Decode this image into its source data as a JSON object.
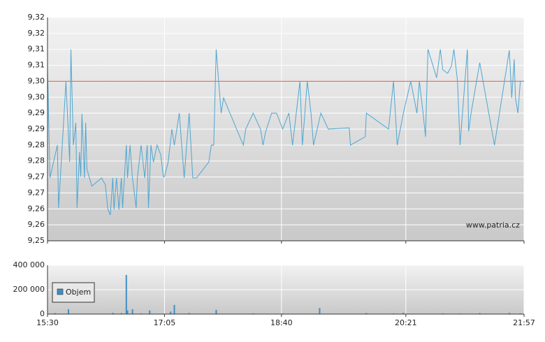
{
  "chart_data": [
    {
      "type": "line",
      "x": [
        930,
        932,
        938,
        939,
        945,
        948,
        949,
        951,
        953,
        954,
        956,
        957,
        958,
        960,
        961,
        962,
        966,
        974,
        977,
        979,
        981,
        983,
        984,
        986,
        988,
        990,
        991,
        994,
        995,
        997,
        999,
        1002,
        1003,
        1006,
        1009,
        1011,
        1012,
        1014,
        1016,
        1019,
        1022,
        1024,
        1025,
        1028,
        1031,
        1033,
        1037,
        1041,
        1045,
        1048,
        1051,
        1061,
        1063,
        1065,
        1067,
        1071,
        1073,
        1089,
        1091,
        1097,
        1103,
        1105,
        1107,
        1112,
        1116,
        1121,
        1126,
        1129,
        1135,
        1137,
        1141,
        1144,
        1146,
        1152,
        1158,
        1175,
        1176,
        1188,
        1189,
        1207,
        1211,
        1214,
        1219,
        1225,
        1230,
        1232,
        1235,
        1237,
        1239,
        1246,
        1249,
        1251,
        1255,
        1258,
        1260,
        1263,
        1265,
        1271,
        1272,
        1274,
        1281,
        1293,
        1305,
        1307,
        1309,
        1310,
        1312,
        1314,
        1317
      ],
      "values": [
        9.3047,
        9.2697,
        9.28,
        9.2603,
        9.3,
        9.2747,
        9.31,
        9.28,
        9.287,
        9.2603,
        9.2778,
        9.2701,
        9.2898,
        9.2697,
        9.287,
        9.2725,
        9.2671,
        9.2697,
        9.2675,
        9.2598,
        9.2581,
        9.2697,
        9.2598,
        9.2697,
        9.2598,
        9.2697,
        9.2603,
        9.28,
        9.2697,
        9.28,
        9.2697,
        9.2603,
        9.2697,
        9.28,
        9.2697,
        9.28,
        9.2603,
        9.28,
        9.2747,
        9.28,
        9.2769,
        9.2701,
        9.2701,
        9.2747,
        9.285,
        9.28,
        9.29,
        9.2697,
        9.29,
        9.2697,
        9.2697,
        9.2747,
        9.28,
        9.28,
        9.31,
        9.29,
        9.2948,
        9.28,
        9.285,
        9.29,
        9.285,
        9.28,
        9.2839,
        9.29,
        9.29,
        9.285,
        9.29,
        9.28,
        9.3,
        9.28,
        9.3,
        9.29,
        9.28,
        9.29,
        9.285,
        9.2854,
        9.28,
        9.2826,
        9.29,
        9.285,
        9.3,
        9.28,
        9.29,
        9.3,
        9.29,
        9.3,
        9.29,
        9.2826,
        9.31,
        9.3011,
        9.31,
        9.3036,
        9.3025,
        9.3047,
        9.31,
        9.3,
        9.28,
        9.31,
        9.2843,
        9.29,
        9.3058,
        9.28,
        9.3097,
        9.2948,
        9.3069,
        9.2948,
        9.29,
        9.3,
        9.3
      ],
      "color": "#4ea6d2",
      "reference_line": {
        "value": 9.3,
        "color": "#e8685c"
      },
      "watermark": "www.patria.cz",
      "xlim": [
        930,
        1317
      ],
      "ylim": [
        9.25,
        9.32
      ],
      "yticks": [
        {
          "value": 9.25,
          "label": "9,25"
        },
        {
          "value": 9.255,
          "label": "9,26"
        },
        {
          "value": 9.26,
          "label": "9,26"
        },
        {
          "value": 9.265,
          "label": "9,27"
        },
        {
          "value": 9.27,
          "label": "9,27"
        },
        {
          "value": 9.275,
          "label": "9,28"
        },
        {
          "value": 9.28,
          "label": "9,28"
        },
        {
          "value": 9.285,
          "label": "9,29"
        },
        {
          "value": 9.29,
          "label": "9,29"
        },
        {
          "value": 9.295,
          "label": "9,30"
        },
        {
          "value": 9.3,
          "label": "9,30"
        },
        {
          "value": 9.305,
          "label": "9,31"
        },
        {
          "value": 9.31,
          "label": "9,31"
        },
        {
          "value": 9.315,
          "label": "9,32"
        },
        {
          "value": 9.32,
          "label": "9,32"
        }
      ],
      "grid": true
    },
    {
      "type": "bar",
      "x": [
        936,
        947,
        983,
        990,
        994,
        995,
        999,
        1006,
        1013,
        1030,
        1033,
        1045,
        1067,
        1097,
        1121,
        1151,
        1189,
        1211,
        1219,
        1251,
        1265,
        1281,
        1305,
        1314
      ],
      "series": [
        {
          "name": "Objem",
          "color": "#3f8fc4",
          "values": [
            8000,
            40000,
            10000,
            8000,
            320000,
            30000,
            40000,
            5000,
            30000,
            20000,
            75000,
            8000,
            35000,
            6000,
            5000,
            50000,
            8000,
            5000,
            10000,
            6000,
            5000,
            8000,
            10000,
            5000
          ]
        }
      ],
      "xlim": [
        930,
        1317
      ],
      "xticks": [
        {
          "value": 930,
          "label": "15:30"
        },
        {
          "value": 1025,
          "label": "17:05"
        },
        {
          "value": 1120,
          "label": "18:40"
        },
        {
          "value": 1221,
          "label": "20:21"
        },
        {
          "value": 1317,
          "label": "21:57"
        }
      ],
      "ylim": [
        0,
        400000
      ],
      "yticks": [
        0,
        {
          "value": 200000,
          "label": "200 000"
        },
        {
          "value": 400000,
          "label": "400 000"
        }
      ],
      "grid": true
    }
  ]
}
